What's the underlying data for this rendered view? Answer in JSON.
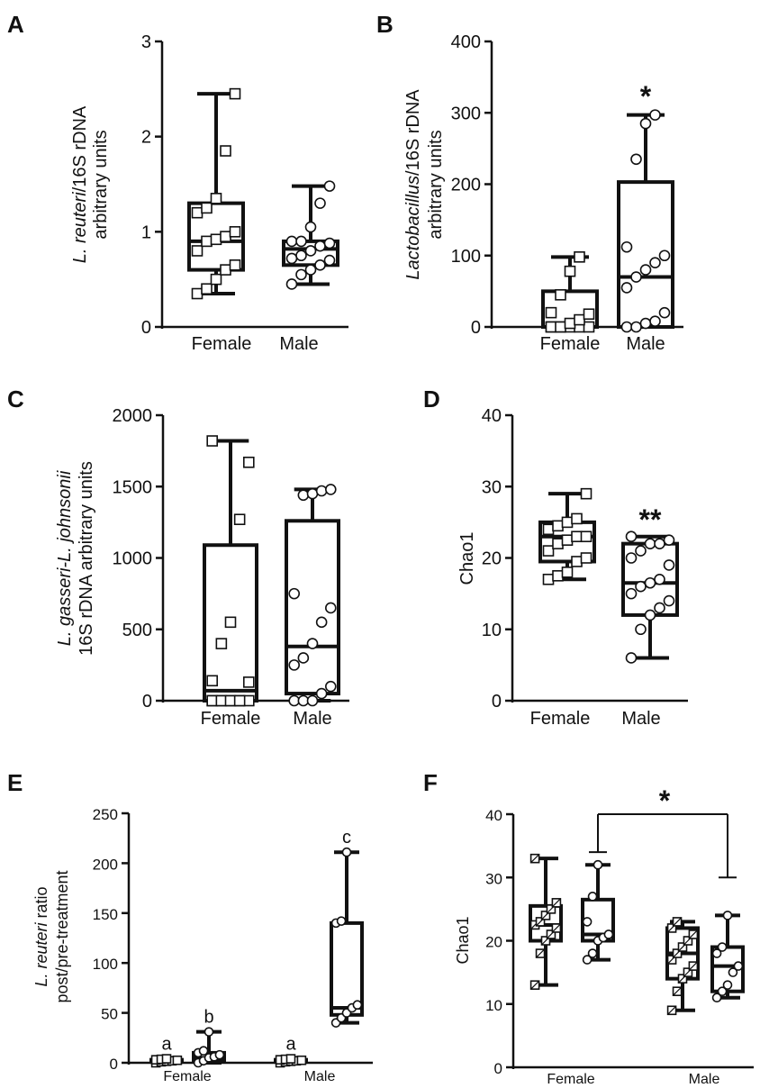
{
  "chart_data": [
    {
      "panel": "A",
      "type": "boxplot",
      "ylabel_italic": "L. reuteri",
      "ylabel_rest": "/16S rDNA",
      "ylabel2": "arbitrary units",
      "ylim": [
        0,
        3
      ],
      "yticks": [
        "0",
        "1",
        "2",
        "3"
      ],
      "categories": [
        "Female",
        "Male"
      ],
      "groups": [
        {
          "name": "Female",
          "marker": "square",
          "min": 0.35,
          "q1": 0.6,
          "median": 0.9,
          "q3": 1.3,
          "max": 2.45,
          "points": [
            0.35,
            0.4,
            0.5,
            0.6,
            0.65,
            0.8,
            0.9,
            0.92,
            0.95,
            1.0,
            1.2,
            1.25,
            1.35,
            1.85,
            2.45
          ]
        },
        {
          "name": "Male",
          "marker": "circle",
          "min": 0.45,
          "q1": 0.65,
          "median": 0.82,
          "q3": 0.9,
          "max": 1.48,
          "points": [
            0.45,
            0.55,
            0.6,
            0.65,
            0.7,
            0.72,
            0.75,
            0.8,
            0.85,
            0.88,
            0.9,
            0.9,
            1.05,
            1.3,
            1.48
          ]
        }
      ],
      "annotations": []
    },
    {
      "panel": "B",
      "type": "boxplot",
      "ylabel_italic": "Lactobacillus",
      "ylabel_rest": "/16S rDNA",
      "ylabel2": "arbitrary units",
      "ylim": [
        0,
        400
      ],
      "yticks": [
        "0",
        "100",
        "200",
        "300",
        "400"
      ],
      "categories": [
        "Female",
        "Male"
      ],
      "groups": [
        {
          "name": "Female",
          "marker": "square",
          "min": 0,
          "q1": 0,
          "median": 0,
          "q3": 50,
          "max": 98,
          "points": [
            0,
            0,
            0,
            0,
            0,
            0,
            0,
            5,
            10,
            18,
            20,
            45,
            78,
            98
          ]
        },
        {
          "name": "Male",
          "marker": "circle",
          "min": 0,
          "q1": 0,
          "median": 70,
          "q3": 203,
          "max": 297,
          "points": [
            0,
            0,
            5,
            8,
            20,
            55,
            70,
            80,
            90,
            100,
            112,
            235,
            285,
            297
          ]
        }
      ],
      "annotations": [
        "*"
      ]
    },
    {
      "panel": "C",
      "type": "boxplot",
      "ylabel_italic": "L. gasseri-L. johnsonii",
      "ylabel_rest": "",
      "ylabel2": "16S rDNA arbitrary units",
      "ylim": [
        0,
        2000
      ],
      "yticks": [
        "0",
        "500",
        "1000",
        "1500",
        "2000"
      ],
      "categories": [
        "Female",
        "Male"
      ],
      "groups": [
        {
          "name": "Female",
          "marker": "square",
          "min": 0,
          "q1": 0,
          "median": 70,
          "q3": 1090,
          "max": 1820,
          "points": [
            0,
            0,
            0,
            0,
            0,
            0,
            0,
            0,
            0,
            130,
            140,
            400,
            550,
            1270,
            1670,
            1820
          ]
        },
        {
          "name": "Male",
          "marker": "circle",
          "min": 0,
          "q1": 50,
          "median": 380,
          "q3": 1260,
          "max": 1480,
          "points": [
            0,
            0,
            0,
            50,
            100,
            250,
            300,
            400,
            550,
            650,
            750,
            1440,
            1450,
            1470,
            1480
          ]
        }
      ],
      "annotations": []
    },
    {
      "panel": "D",
      "type": "boxplot",
      "ylabel_italic": "",
      "ylabel_rest": "Chao1",
      "ylabel2": "",
      "ylim": [
        0,
        40
      ],
      "yticks": [
        "0",
        "10",
        "20",
        "30",
        "40"
      ],
      "categories": [
        "Female",
        "Male"
      ],
      "groups": [
        {
          "name": "Female",
          "marker": "square",
          "min": 17,
          "q1": 19.5,
          "median": 23,
          "q3": 25,
          "max": 29,
          "points": [
            17,
            17.5,
            18,
            19.5,
            20,
            21,
            22,
            22.5,
            23,
            23,
            24,
            24.5,
            25,
            25.5,
            29
          ]
        },
        {
          "name": "Male",
          "marker": "circle",
          "min": 6,
          "q1": 12,
          "median": 16.5,
          "q3": 22,
          "max": 23,
          "points": [
            6,
            10,
            12,
            13,
            14,
            15,
            16,
            16.5,
            17,
            19,
            20,
            21,
            22,
            22,
            22.5,
            23
          ]
        }
      ],
      "annotations": [
        "**"
      ]
    },
    {
      "panel": "E",
      "type": "boxplot",
      "ylabel_italic": "L. reuteri",
      "ylabel_rest": " ratio",
      "ylabel2": "post/pre-treatment",
      "ylim": [
        0,
        250
      ],
      "yticks": [
        "0",
        "50",
        "100",
        "150",
        "200",
        "250"
      ],
      "categories": [
        "Female",
        "Male"
      ],
      "groups": [
        {
          "name": "Female-1",
          "category": "Female",
          "marker": "square",
          "min": 0,
          "q1": 1,
          "median": 2,
          "q3": 3,
          "max": 4,
          "points": [
            0,
            1,
            1.5,
            2,
            2.5,
            3,
            3.5,
            4
          ],
          "letter": "a"
        },
        {
          "name": "Female-2",
          "category": "Female",
          "marker": "circle",
          "min": 0,
          "q1": 2,
          "median": 5,
          "q3": 10,
          "max": 31,
          "points": [
            0,
            2,
            5,
            6,
            8,
            10,
            12,
            31
          ],
          "letter": "b"
        },
        {
          "name": "Male-1",
          "category": "Male",
          "marker": "square",
          "min": 0,
          "q1": 1,
          "median": 2,
          "q3": 3,
          "max": 4,
          "points": [
            0,
            1,
            1.5,
            2,
            2.5,
            3,
            3.5,
            4
          ],
          "letter": "a"
        },
        {
          "name": "Male-2",
          "category": "Male",
          "marker": "circle",
          "min": 40,
          "q1": 48,
          "median": 55,
          "q3": 140,
          "max": 211,
          "points": [
            40,
            45,
            50,
            55,
            58,
            140,
            142,
            211
          ],
          "letter": "c"
        }
      ],
      "annotations": []
    },
    {
      "panel": "F",
      "type": "boxplot",
      "ylabel_italic": "",
      "ylabel_rest": "Chao1",
      "ylabel2": "",
      "ylim": [
        0,
        40
      ],
      "yticks": [
        "0",
        "10",
        "20",
        "30",
        "40"
      ],
      "categories": [
        "Female",
        "Male"
      ],
      "groups": [
        {
          "name": "Female-1",
          "category": "Female",
          "marker": "hatched-square",
          "min": 13,
          "q1": 20,
          "median": 22.5,
          "q3": 25.5,
          "max": 33,
          "points": [
            13,
            18,
            20,
            21,
            22,
            22.5,
            23,
            24,
            25,
            26,
            33
          ]
        },
        {
          "name": "Female-2",
          "category": "Female",
          "marker": "circle",
          "min": 17,
          "q1": 20,
          "median": 21,
          "q3": 26.5,
          "max": 32,
          "points": [
            17,
            18,
            20,
            20.5,
            21,
            23,
            27,
            32
          ]
        },
        {
          "name": "Male-1",
          "category": "Male",
          "marker": "hatched-square",
          "min": 9,
          "q1": 14,
          "median": 18,
          "q3": 22,
          "max": 23,
          "points": [
            9,
            12,
            14,
            15,
            16,
            17,
            18,
            19,
            20,
            21,
            22,
            23
          ]
        },
        {
          "name": "Male-2",
          "category": "Male",
          "marker": "circle",
          "min": 11,
          "q1": 12,
          "median": 16,
          "q3": 19,
          "max": 24,
          "points": [
            11,
            12,
            13,
            15,
            16,
            18,
            19,
            24
          ]
        }
      ],
      "annotations": [
        "*"
      ]
    }
  ]
}
